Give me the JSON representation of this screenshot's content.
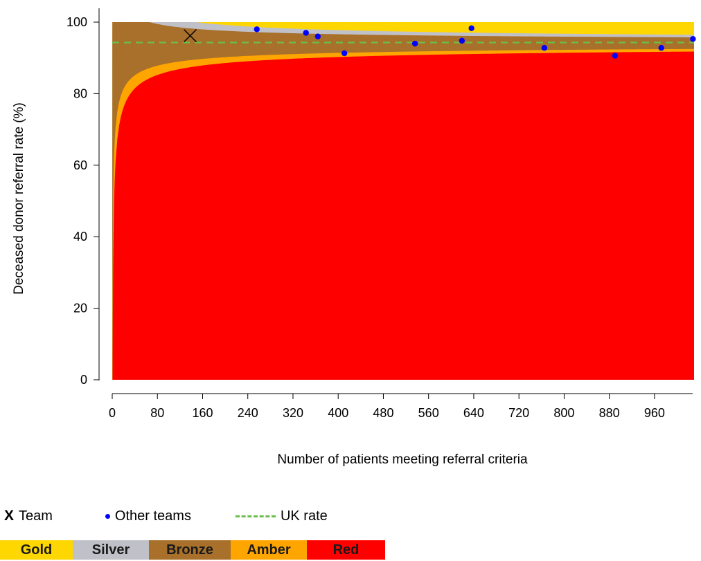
{
  "chart_data": {
    "type": "area",
    "title": "",
    "xlabel": "Number of patients meeting referral criteria",
    "ylabel": "Deceased donor referral rate (%)",
    "xlim": [
      0,
      1030
    ],
    "ylim": [
      0,
      100
    ],
    "x_ticks": [
      0,
      80,
      160,
      240,
      320,
      400,
      480,
      560,
      640,
      720,
      800,
      880,
      960
    ],
    "y_ticks": [
      0,
      20,
      40,
      60,
      80,
      100
    ],
    "uk_rate": 94.3,
    "funnel_x_max": 1030,
    "bands": [
      {
        "name": "Gold",
        "color": "#ffd700"
      },
      {
        "name": "Silver",
        "color": "#c0c0c8"
      },
      {
        "name": "Bronze",
        "color": "#a8702a"
      },
      {
        "name": "Amber",
        "color": "#ffa500"
      },
      {
        "name": "Red",
        "color": "#ff0000"
      }
    ],
    "team": {
      "x": 138,
      "y": 96.2
    },
    "other_teams": [
      {
        "x": 256,
        "y": 98.0
      },
      {
        "x": 343,
        "y": 97.0
      },
      {
        "x": 364,
        "y": 96.0
      },
      {
        "x": 411,
        "y": 91.3
      },
      {
        "x": 536,
        "y": 94.0
      },
      {
        "x": 619,
        "y": 94.8
      },
      {
        "x": 636,
        "y": 98.3
      },
      {
        "x": 765,
        "y": 92.8
      },
      {
        "x": 890,
        "y": 90.6
      },
      {
        "x": 972,
        "y": 92.8
      },
      {
        "x": 1028,
        "y": 95.3
      }
    ]
  },
  "legend": {
    "team_marker": "X",
    "team_label": "Team",
    "other_label": "Other teams",
    "uk_label": "UK rate"
  },
  "band_labels": {
    "gold": "Gold",
    "silver": "Silver",
    "bronze": "Bronze",
    "amber": "Amber",
    "red": "Red"
  },
  "colors": {
    "gold": "#ffd700",
    "silver": "#c0c0c8",
    "bronze": "#a8702a",
    "amber": "#ffa500",
    "red": "#ff0000",
    "uk_line": "#6abf4b",
    "other_teams": "#0000ff"
  }
}
